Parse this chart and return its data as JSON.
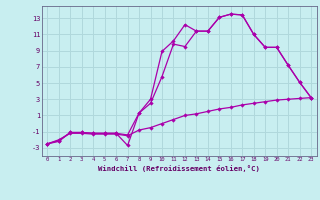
{
  "xlabel": "Windchill (Refroidissement éolien,°C)",
  "bg_color": "#c8eef0",
  "grid_color": "#b0d8dc",
  "line_color": "#aa00aa",
  "x_ticks": [
    0,
    1,
    2,
    3,
    4,
    5,
    6,
    7,
    8,
    9,
    10,
    11,
    12,
    13,
    14,
    15,
    16,
    17,
    18,
    19,
    20,
    21,
    22,
    23
  ],
  "y_ticks": [
    -3,
    -1,
    1,
    3,
    5,
    7,
    9,
    11,
    13
  ],
  "ylim": [
    -4.0,
    14.5
  ],
  "xlim": [
    -0.5,
    23.5
  ],
  "line1_x": [
    0,
    1,
    2,
    3,
    4,
    5,
    6,
    7,
    8,
    9,
    10,
    11,
    12,
    13,
    14,
    15,
    16,
    17,
    18,
    19,
    20,
    21,
    22,
    23
  ],
  "line1_y": [
    -2.5,
    -2.2,
    -1.1,
    -1.1,
    -1.2,
    -1.2,
    -1.2,
    -2.7,
    1.3,
    3.0,
    8.9,
    10.2,
    12.2,
    11.4,
    11.4,
    13.1,
    13.5,
    13.4,
    11.0,
    9.4,
    9.4,
    7.2,
    5.1,
    3.2
  ],
  "line2_x": [
    0,
    1,
    2,
    3,
    4,
    5,
    6,
    7,
    8,
    9,
    10,
    11,
    12,
    13,
    14,
    15,
    16,
    17,
    18,
    19,
    20,
    21,
    22,
    23
  ],
  "line2_y": [
    -2.5,
    -2.1,
    -1.1,
    -1.1,
    -1.2,
    -1.2,
    -1.2,
    -1.4,
    1.3,
    2.5,
    5.8,
    9.8,
    9.5,
    11.4,
    11.4,
    13.1,
    13.5,
    13.4,
    11.0,
    9.4,
    9.4,
    7.2,
    5.1,
    3.2
  ],
  "line3_x": [
    0,
    1,
    2,
    3,
    4,
    5,
    6,
    7,
    8,
    9,
    10,
    11,
    12,
    13,
    14,
    15,
    16,
    17,
    18,
    19,
    20,
    21,
    22,
    23
  ],
  "line3_y": [
    -2.5,
    -2.0,
    -1.2,
    -1.2,
    -1.3,
    -1.3,
    -1.3,
    -1.5,
    -0.8,
    -0.5,
    0.0,
    0.5,
    1.0,
    1.2,
    1.5,
    1.8,
    2.0,
    2.3,
    2.5,
    2.7,
    2.9,
    3.0,
    3.1,
    3.2
  ]
}
